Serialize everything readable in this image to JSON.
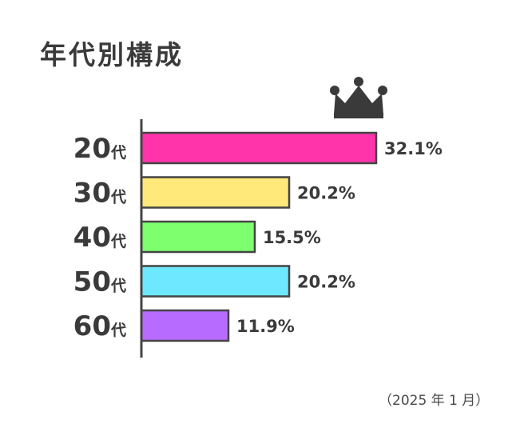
{
  "title": "年代別構成",
  "note": "（2025 年 1 月）",
  "crown_icon": "crown-icon",
  "chart_data": {
    "type": "bar",
    "orientation": "horizontal",
    "title": "年代別構成",
    "categories": [
      "20代",
      "30代",
      "40代",
      "50代",
      "60代"
    ],
    "values": [
      32.1,
      20.2,
      15.5,
      20.2,
      11.9
    ],
    "labels": [
      "32.1%",
      "20.2%",
      "15.5%",
      "20.2%",
      "11.9%"
    ],
    "colors": [
      "#ff33aa",
      "#ffe97a",
      "#7dff6e",
      "#6ee8ff",
      "#b86bff"
    ],
    "highlight": "20代",
    "grid": false
  }
}
